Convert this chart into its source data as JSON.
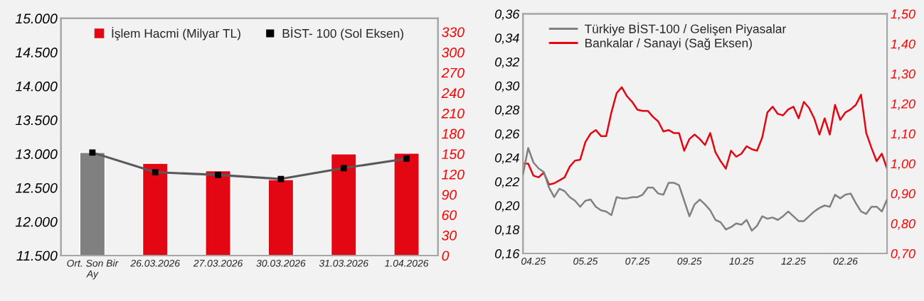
{
  "chart_data": [
    {
      "type": "bar",
      "categories": [
        "Ort. Son Bir Ay",
        "26.03.2026",
        "27.03.2026",
        "30.03.2026",
        "31.03.2026",
        "1.04.2026"
      ],
      "series": [
        {
          "name": "İşlem Hacmi (Milyar TL)",
          "type": "bar",
          "axis": "y2",
          "color": "#e30613",
          "colors": [
            "#808080",
            "#e30613",
            "#e30613",
            "#e30613",
            "#e30613",
            "#e30613"
          ],
          "values": [
            152,
            136,
            125,
            112,
            150,
            151
          ]
        },
        {
          "name": "BİST- 100 (Sol Eksen)",
          "type": "line",
          "color": "#595959",
          "marker": "square",
          "values": [
            13020,
            12730,
            12690,
            12630,
            12790,
            12930
          ]
        }
      ],
      "ylim": [
        11500,
        15000
      ],
      "yticks": [
        {
          "value": 11500,
          "label": "11.500"
        },
        {
          "value": 12000,
          "label": "12.000"
        },
        {
          "value": 12500,
          "label": "12.500"
        },
        {
          "value": 13000,
          "label": "13.000"
        },
        {
          "value": 13500,
          "label": "13.500"
        },
        {
          "value": 14000,
          "label": "14.000"
        },
        {
          "value": 14500,
          "label": "14.500"
        },
        {
          "value": 15000,
          "label": "15.000"
        }
      ],
      "y2lim": [
        0,
        350
      ],
      "y2ticks": [
        0,
        30,
        60,
        90,
        120,
        150,
        180,
        210,
        240,
        270,
        300,
        330
      ],
      "legend": "top",
      "grid": false
    },
    {
      "type": "line",
      "categories": [
        null,
        null,
        "04.25",
        null,
        null,
        null,
        null,
        null,
        null,
        null,
        null,
        null,
        "05.25",
        null,
        null,
        null,
        null,
        null,
        null,
        null,
        null,
        null,
        "07.25",
        null,
        null,
        null,
        null,
        null,
        null,
        null,
        null,
        null,
        "09.25",
        null,
        null,
        null,
        null,
        null,
        null,
        null,
        null,
        null,
        "10.25",
        null,
        null,
        null,
        null,
        null,
        null,
        null,
        null,
        null,
        "12.25",
        null,
        null,
        null,
        null,
        null,
        null,
        null,
        null,
        null,
        "02.26",
        null,
        null,
        null,
        null,
        null,
        null,
        null,
        null
      ],
      "series": [
        {
          "name": "Türkiye BİST-100 / Gelişen Piyasalar",
          "color": "#808080",
          "values": [
            0.226,
            0.248,
            0.236,
            0.231,
            0.228,
            0.215,
            0.207,
            0.214,
            0.212,
            0.207,
            0.204,
            0.199,
            0.204,
            0.205,
            0.199,
            0.196,
            0.195,
            0.192,
            0.207,
            0.206,
            0.206,
            0.207,
            0.207,
            0.209,
            0.215,
            0.215,
            0.21,
            0.209,
            0.219,
            0.219,
            0.217,
            0.204,
            0.191,
            0.201,
            0.205,
            0.201,
            0.196,
            0.188,
            0.186,
            0.18,
            0.182,
            0.185,
            0.184,
            0.188,
            0.179,
            0.183,
            0.191,
            0.189,
            0.19,
            0.188,
            0.191,
            0.195,
            0.191,
            0.187,
            0.187,
            0.191,
            0.195,
            0.198,
            0.2,
            0.199,
            0.209,
            0.206,
            0.209,
            0.21,
            0.202,
            0.195,
            0.193,
            0.199,
            0.199,
            0.195,
            0.205
          ]
        },
        {
          "name": "Bankalar / Sanayi (Sağ Eksen)",
          "color": "#e30613",
          "axis": "y2",
          "values": [
            1.0,
            1.0,
            0.96,
            0.954,
            0.97,
            0.93,
            0.934,
            0.944,
            0.954,
            0.99,
            1.01,
            1.013,
            1.072,
            1.1,
            1.112,
            1.092,
            1.092,
            1.171,
            1.235,
            1.255,
            1.225,
            1.206,
            1.18,
            1.176,
            1.176,
            1.156,
            1.141,
            1.107,
            1.112,
            1.102,
            1.102,
            1.043,
            1.082,
            1.097,
            1.082,
            1.062,
            1.102,
            1.038,
            1.008,
            0.983,
            1.043,
            1.023,
            1.033,
            1.058,
            1.048,
            1.043,
            1.087,
            1.171,
            1.19,
            1.166,
            1.161,
            1.181,
            1.19,
            1.151,
            1.206,
            1.186,
            1.151,
            1.097,
            1.151,
            1.097,
            1.196,
            1.146,
            1.171,
            1.181,
            1.196,
            1.23,
            1.102,
            1.053,
            1.008,
            1.033,
            0.983
          ]
        }
      ],
      "ylim": [
        0.16,
        0.36
      ],
      "yticks": [
        {
          "value": 0.16,
          "label": "0,16"
        },
        {
          "value": 0.18,
          "label": "0,18"
        },
        {
          "value": 0.2,
          "label": "0,20"
        },
        {
          "value": 0.22,
          "label": "0,22"
        },
        {
          "value": 0.24,
          "label": "0,24"
        },
        {
          "value": 0.26,
          "label": "0,26"
        },
        {
          "value": 0.28,
          "label": "0,28"
        },
        {
          "value": 0.3,
          "label": "0,30"
        },
        {
          "value": 0.32,
          "label": "0,32"
        },
        {
          "value": 0.34,
          "label": "0,34"
        },
        {
          "value": 0.36,
          "label": "0,36"
        }
      ],
      "y2lim": [
        0.7,
        1.5
      ],
      "y2ticks": [
        {
          "value": 0.7,
          "label": "0,70"
        },
        {
          "value": 0.8,
          "label": "0,80"
        },
        {
          "value": 0.9,
          "label": "0,90"
        },
        {
          "value": 1.0,
          "label": "1,00"
        },
        {
          "value": 1.1,
          "label": "1,10"
        },
        {
          "value": 1.2,
          "label": "1,20"
        },
        {
          "value": 1.3,
          "label": "1,30"
        },
        {
          "value": 1.4,
          "label": "1,40"
        },
        {
          "value": 1.5,
          "label": "1,50"
        }
      ],
      "legend": "top left",
      "grid": false
    }
  ]
}
